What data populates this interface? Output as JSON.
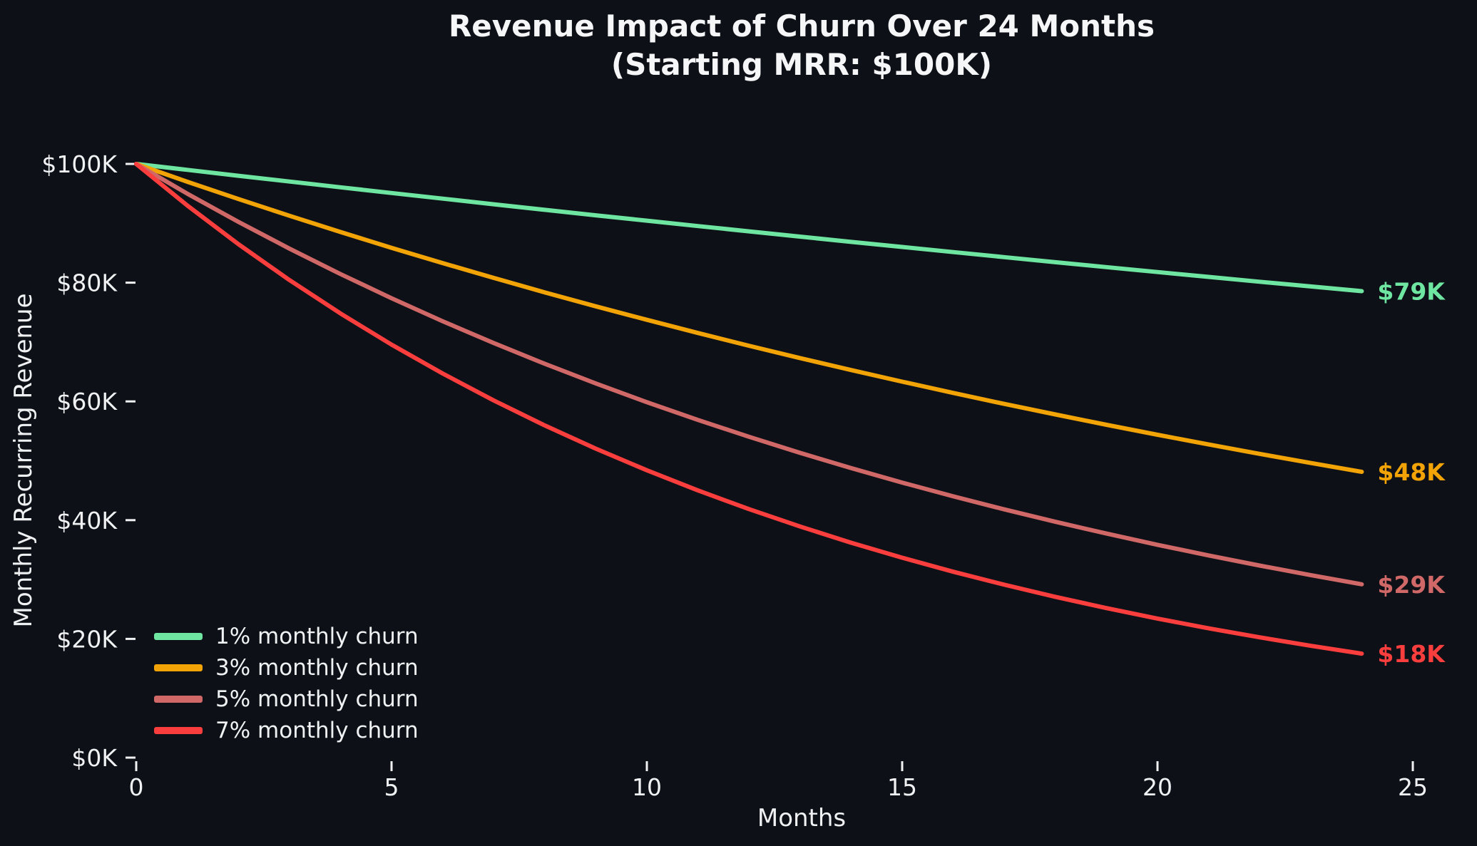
{
  "colors": {
    "background": "#0d1016",
    "text": "#eff1f3",
    "tick": "#eff1f3"
  },
  "chart_data": {
    "type": "line",
    "title": "Revenue Impact of Churn Over 24 Months",
    "subtitle": "(Starting MRR: $100K)",
    "xlabel": "Months",
    "ylabel": "Monthly Recurring Revenue",
    "grid": false,
    "legend_position": "lower left",
    "xlim": [
      0,
      25
    ],
    "ylim": [
      0,
      100
    ],
    "x": [
      0,
      1,
      2,
      3,
      4,
      5,
      6,
      7,
      8,
      9,
      10,
      11,
      12,
      13,
      14,
      15,
      16,
      17,
      18,
      19,
      20,
      21,
      22,
      23,
      24
    ],
    "xticks": {
      "values": [
        0,
        5,
        10,
        15,
        20,
        25
      ],
      "labels": [
        "0",
        "5",
        "10",
        "15",
        "20",
        "25"
      ]
    },
    "yticks": {
      "values": [
        0,
        20,
        40,
        60,
        80,
        100
      ],
      "labels": [
        "$0K",
        "$20K",
        "$40K",
        "$60K",
        "$80K",
        "$100K"
      ]
    },
    "series": [
      {
        "name": "1% monthly churn",
        "color": "#6ee5a0",
        "end_label": "$79K",
        "values": [
          100,
          99,
          98.01,
          97.03,
          96.06,
          95.1,
          94.15,
          93.21,
          92.27,
          91.35,
          90.44,
          89.53,
          88.64,
          87.75,
          86.87,
          86.01,
          85.15,
          84.3,
          83.45,
          82.62,
          81.79,
          80.97,
          80.16,
          79.36,
          78.57
        ]
      },
      {
        "name": "3% monthly churn",
        "color": "#f2a306",
        "end_label": "$48K",
        "values": [
          100,
          97,
          94.09,
          91.27,
          88.53,
          85.87,
          83.3,
          80.8,
          78.37,
          76.02,
          73.74,
          71.53,
          69.38,
          67.3,
          65.28,
          63.33,
          61.43,
          59.58,
          57.8,
          56.06,
          54.38,
          52.75,
          51.17,
          49.63,
          48.14
        ]
      },
      {
        "name": "5% monthly churn",
        "color": "#d16868",
        "end_label": "$29K",
        "values": [
          100,
          95,
          90.25,
          85.74,
          81.45,
          77.38,
          73.51,
          69.83,
          66.34,
          63.02,
          59.87,
          56.88,
          54.04,
          51.33,
          48.77,
          46.33,
          44.01,
          41.81,
          39.72,
          37.74,
          35.85,
          34.06,
          32.35,
          30.74,
          29.2
        ]
      },
      {
        "name": "7% monthly churn",
        "color": "#fa3e3e",
        "end_label": "$18K",
        "values": [
          100,
          93,
          86.49,
          80.44,
          74.81,
          69.57,
          64.7,
          60.17,
          55.96,
          52.04,
          48.4,
          45.01,
          41.86,
          38.93,
          36.2,
          33.67,
          31.31,
          29.12,
          27.08,
          25.19,
          23.42,
          21.78,
          20.26,
          18.84,
          17.52
        ]
      }
    ]
  }
}
